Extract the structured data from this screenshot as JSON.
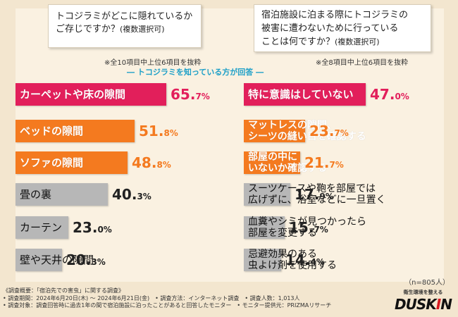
{
  "colors": {
    "red": "#e21f5b",
    "orange": "#f47a1f",
    "gray": "#b7b7b7",
    "accent": "#1ea0c8",
    "red_text": "#e21f5b",
    "orange_text": "#f47a1f",
    "gray_text": "#222222"
  },
  "left": {
    "question_line1": "トコジラミがどこに隠れているか",
    "question_line2": "ご存じですか？",
    "question_suffix": "(複数選択可)",
    "note": "※全10項目中上位6項目を抜粋"
  },
  "right": {
    "question_line1": "宿泊施設に泊まる際にトコジラミの",
    "question_line2": "被害に遭わないために行っている",
    "question_line3": "ことは何ですか？",
    "question_suffix": "(複数選択可)",
    "note": "※全8項目中上位6項目を抜粋"
  },
  "subtitle": "― トコジラミを知っている方が回答 ―",
  "sample_note": "（n=805人）",
  "chart_data": [
    {
      "type": "bar",
      "title": "トコジラミがどこに隠れているかご存じですか？(複数選択可)",
      "unit": "%",
      "categories": [
        "カーペットや床の隙間",
        "ベッドの隙間",
        "ソファの隙間",
        "畳の裏",
        "カーテン",
        "壁や天井の隙間"
      ],
      "values": [
        65.7,
        51.8,
        48.8,
        40.3,
        23.0,
        20.3
      ],
      "value_int": [
        "65.",
        "51.",
        "48.",
        "40.",
        "23.",
        "20."
      ],
      "value_dec": [
        "7%",
        "8%",
        "8%",
        "3%",
        "0%",
        "3%"
      ]
    },
    {
      "type": "bar",
      "title": "宿泊施設に泊まる際にトコジラミの被害に遭わないために行っていることは何ですか？(複数選択可)",
      "unit": "%",
      "categories": [
        "特に意識はしていない",
        "マットレスの隙間、シーツの縫い目を確認する",
        "部屋の中にいないか確認する",
        "スーツケースや鞄を部屋では広げずに、浴室などに一旦置く",
        "血糞やシミが見つかったら部屋を変更する",
        "忌避効果のある虫よけ剤を使用する"
      ],
      "label_lines": [
        [
          "特に意識はしていない"
        ],
        [
          "マットレスの隙間、",
          "シーツの縫い目を確認する"
        ],
        [
          "部屋の中に",
          "いないか確認する"
        ],
        [
          "スーツケースや鞄を部屋では",
          "広げずに、浴室などに一旦置く"
        ],
        [
          "血糞やシミが見つかったら",
          "部屋を変更する"
        ],
        [
          "忌避効果のある",
          "虫よけ剤を使用する"
        ]
      ],
      "values": [
        47.0,
        23.7,
        21.7,
        17.9,
        15.7,
        14.4
      ],
      "value_int": [
        "47.",
        "23.",
        "21.",
        "17.",
        "15.",
        "14."
      ],
      "value_dec": [
        "0%",
        "7%",
        "7%",
        "9%",
        "7%",
        "4%"
      ]
    }
  ],
  "footer": {
    "line1": "《調査概要：「宿泊先での害虫」に関する調査》",
    "line2": "• 調査期間：2024年6月20日(木) ～ 2024年6月21日(金)　• 調査方法：インターネット調査　• 調査人数：1,013人",
    "line3": "• 調査対象：調査回答時に過去1年の間で宿泊施設に泊ったことがあると回答したモニター　• モニター提供元：PRIZMAリサーチ"
  },
  "brand": {
    "tagline": "衛生環境を整える",
    "logo_a": "DUSK",
    "logo_i": "I",
    "logo_b": "N"
  }
}
